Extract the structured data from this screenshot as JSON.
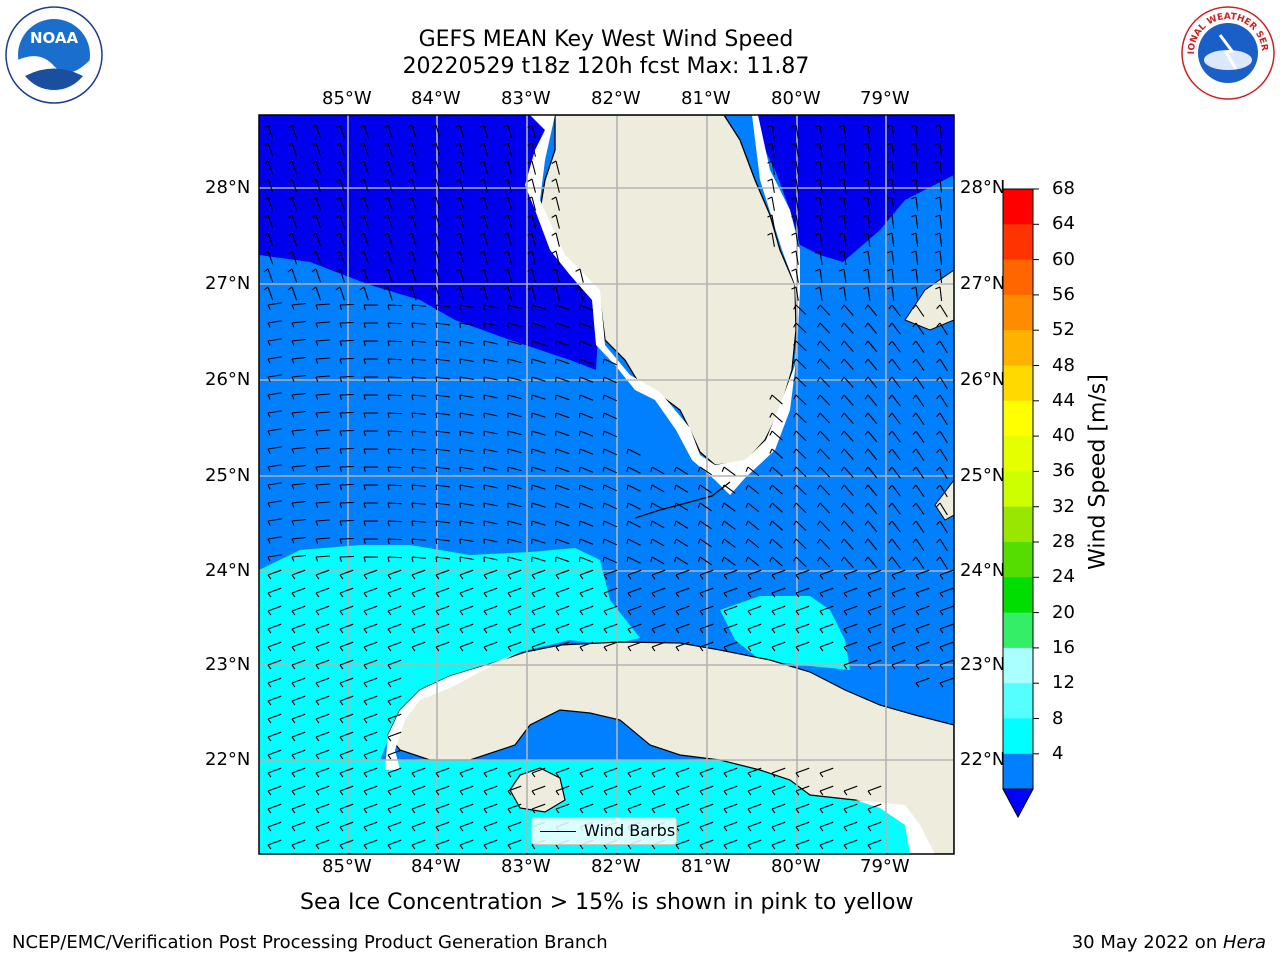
{
  "title": {
    "line1": "GEFS MEAN Key West Wind Speed",
    "line2": "20220529 t18z 120h fcst   Max: 11.87"
  },
  "map": {
    "longitude_labels": [
      "85°W",
      "84°W",
      "83°W",
      "82°W",
      "81°W",
      "80°W",
      "79°W"
    ],
    "latitude_labels": [
      "28°N",
      "27°N",
      "26°N",
      "25°N",
      "24°N",
      "23°N",
      "22°N"
    ],
    "land_color": "#eeecdc",
    "grid_color": "#b3b3b3",
    "wind_barbs": "Wind Barbs"
  },
  "colorbar": {
    "label": "Wind Speed [m/s]",
    "ticks": [
      "68",
      "64",
      "60",
      "56",
      "52",
      "48",
      "44",
      "40",
      "36",
      "32",
      "28",
      "24",
      "20",
      "16",
      "12",
      "8",
      "4"
    ],
    "colors": [
      "#ff0000",
      "#ff3300",
      "#ff6600",
      "#ff8c00",
      "#ffb300",
      "#ffd900",
      "#ffff00",
      "#e6ff00",
      "#ccff00",
      "#99e600",
      "#55dd00",
      "#00dd00",
      "#33ee66",
      "#aaffff",
      "#55ffff",
      "#00ffff",
      "#0080ff"
    ],
    "underflow_color": "#0000ff"
  },
  "wind_colors": {
    "lt4": "#0000ee",
    "4to8": "#0080ff",
    "8to12": "#00ffff"
  },
  "note": "Sea Ice Concentration > 15% is shown in pink to yellow",
  "footer": {
    "org": "NCEP/EMC/Verification Post Processing Product Generation Branch",
    "date": "30 May 2022 on ",
    "machine": "Hera"
  },
  "logos": {
    "left": "NOAA",
    "right": "NATIONAL WEATHER SERVICE"
  }
}
